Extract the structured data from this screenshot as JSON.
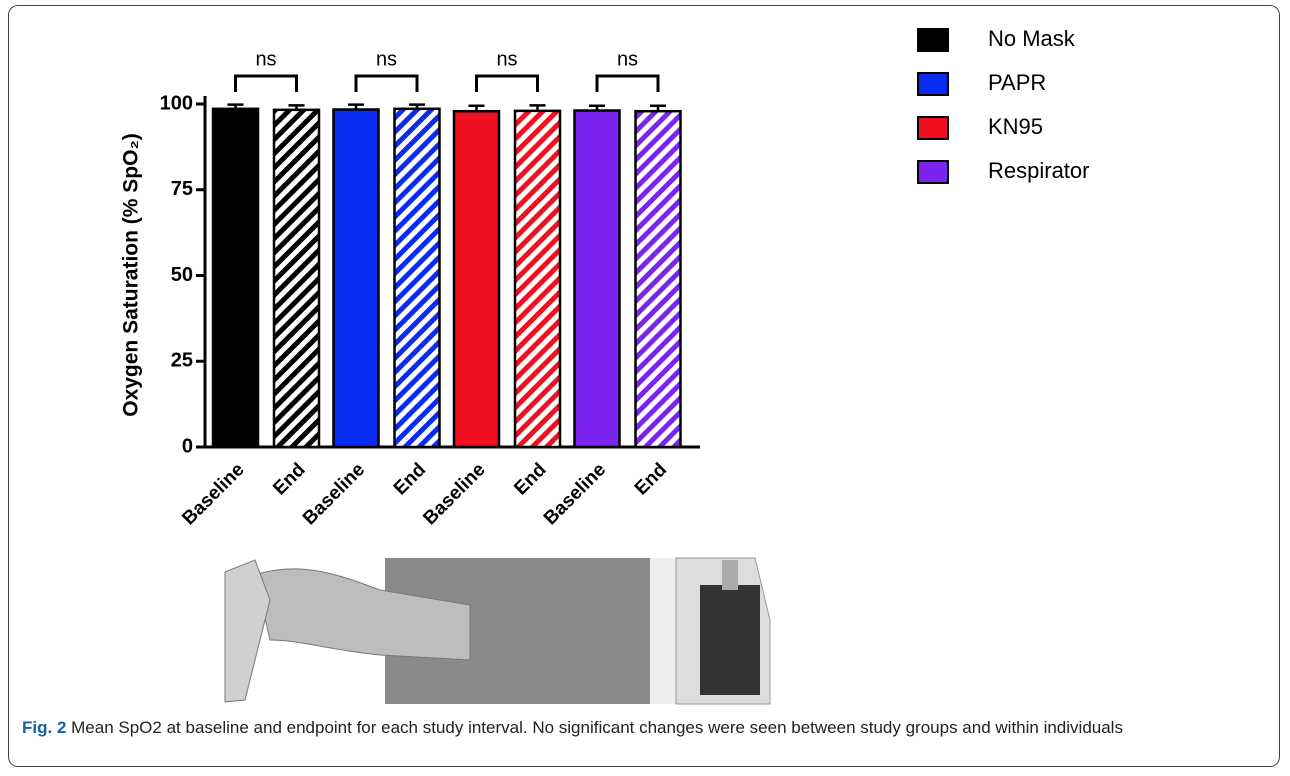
{
  "chart_data": {
    "type": "grouped-bar",
    "y_label": "Oxygen Saturation (% SpO₂)",
    "categories": [
      "Baseline",
      "End"
    ],
    "series": [
      {
        "name": "No Mask",
        "color": "#000000",
        "values": [
          98.6,
          98.3
        ],
        "errors": [
          1.2,
          1.3
        ]
      },
      {
        "name": "PAPR",
        "color": "#0a2cf0",
        "values": [
          98.4,
          98.6
        ],
        "errors": [
          1.4,
          1.2
        ]
      },
      {
        "name": "KN95",
        "color": "#f0101f",
        "values": [
          97.9,
          98.0
        ],
        "errors": [
          1.6,
          1.6
        ]
      },
      {
        "name": "Respirator",
        "color": "#7b24f0",
        "values": [
          98.1,
          97.9
        ],
        "errors": [
          1.4,
          1.6
        ]
      }
    ],
    "annotations": [
      "ns",
      "ns",
      "ns",
      "ns"
    ],
    "ylim": [
      0,
      100
    ],
    "yticks": [
      0,
      25,
      50,
      75,
      100
    ]
  },
  "caption": {
    "label": "Fig. 2",
    "text": "Mean SpO2 at baseline and endpoint for each study interval. No significant changes were seen between study groups and within individuals"
  }
}
